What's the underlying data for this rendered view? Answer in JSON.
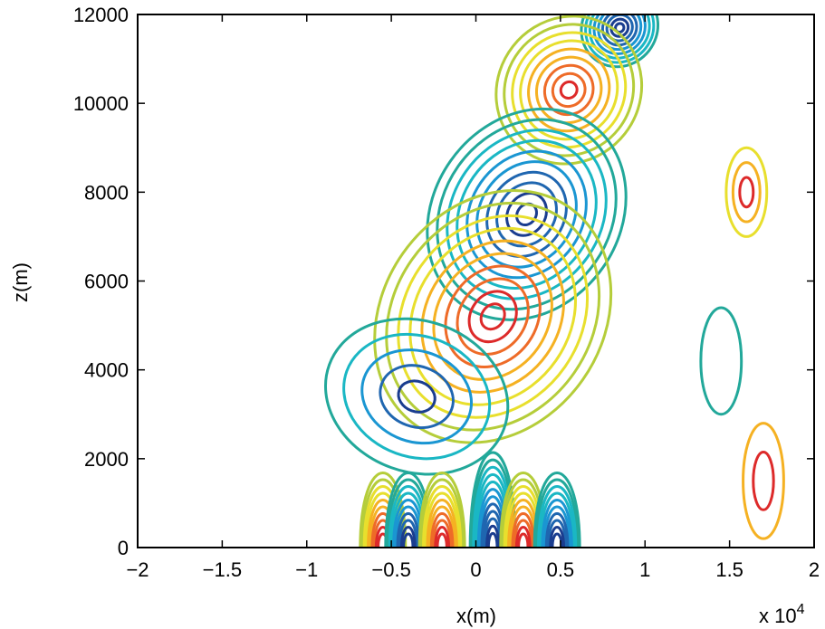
{
  "chart_data": {
    "type": "contour",
    "title": "",
    "xlabel": "x(m)",
    "ylabel": "z(m)",
    "x_multiplier_label": "x 10",
    "x_multiplier_exponent": "4",
    "xlim": [
      -2,
      2
    ],
    "ylim": [
      0,
      12000
    ],
    "x_ticks": [
      -2,
      -1.5,
      -1,
      -0.5,
      0,
      0.5,
      1,
      1.5,
      2
    ],
    "x_tick_labels": [
      "−2",
      "−1.5",
      "−1",
      "−0.5",
      "0",
      "0.5",
      "1",
      "1.5",
      "2"
    ],
    "y_ticks": [
      0,
      2000,
      4000,
      6000,
      8000,
      10000,
      12000
    ],
    "y_tick_labels": [
      "0",
      "2000",
      "4000",
      "6000",
      "8000",
      "10000",
      "12000"
    ],
    "grid": false,
    "legend": "none",
    "colormap": [
      "#1a3d8f",
      "#1f66b0",
      "#1a96d2",
      "#1ab7c4",
      "#22a89a",
      "#6bb848",
      "#b5cd3a",
      "#e8df2d",
      "#f5b122",
      "#ee6b28",
      "#dd2a2a"
    ],
    "features": [
      {
        "name": "negative-lobe-upper",
        "sign": "negative",
        "center": [
          0.85,
          11700
        ],
        "radii": [
          0.22,
          900
        ],
        "tilt_deg": 38,
        "levels": 9
      },
      {
        "name": "positive-lobe-upper",
        "sign": "positive",
        "center": [
          0.55,
          10300
        ],
        "radii": [
          0.42,
          1700
        ],
        "tilt_deg": 38,
        "levels": 9
      },
      {
        "name": "negative-lobe-mid",
        "sign": "negative",
        "center": [
          0.3,
          7500
        ],
        "radii": [
          0.55,
          2500
        ],
        "tilt_deg": 35,
        "levels": 10
      },
      {
        "name": "positive-lobe-mid",
        "sign": "positive",
        "center": [
          0.1,
          5200
        ],
        "radii": [
          0.65,
          3000
        ],
        "tilt_deg": 35,
        "levels": 10
      },
      {
        "name": "negative-lobe-low",
        "sign": "negative",
        "center": [
          -0.35,
          3400
        ],
        "radii": [
          0.55,
          1700
        ],
        "tilt_deg": 20,
        "levels": 5
      },
      {
        "name": "small-positive-right",
        "sign": "positive",
        "center": [
          1.6,
          8000
        ],
        "radii": [
          0.12,
          1000
        ],
        "tilt_deg": 0,
        "levels": 3
      },
      {
        "name": "small-negative-right",
        "sign": "negative",
        "center": [
          1.45,
          4200
        ],
        "radii": [
          0.12,
          1200
        ],
        "tilt_deg": 0,
        "levels": 1
      },
      {
        "name": "small-positive-lower-right",
        "sign": "positive",
        "center": [
          1.7,
          1500
        ],
        "radii": [
          0.12,
          1300
        ],
        "tilt_deg": 0,
        "levels": 2
      },
      {
        "name": "near-surface-cell-1",
        "sign": "positive",
        "center": [
          -0.55,
          0
        ],
        "levels": 10
      },
      {
        "name": "near-surface-cell-2",
        "sign": "negative",
        "center": [
          -0.4,
          0
        ],
        "levels": 10
      },
      {
        "name": "near-surface-cell-3",
        "sign": "positive",
        "center": [
          -0.2,
          0
        ],
        "levels": 10
      },
      {
        "name": "near-surface-cell-4",
        "sign": "negative",
        "center": [
          0.1,
          0
        ],
        "levels": 12
      },
      {
        "name": "near-surface-cell-5",
        "sign": "positive",
        "center": [
          0.28,
          0
        ],
        "levels": 10
      },
      {
        "name": "near-surface-cell-6",
        "sign": "negative",
        "center": [
          0.48,
          0
        ],
        "levels": 10
      }
    ]
  }
}
